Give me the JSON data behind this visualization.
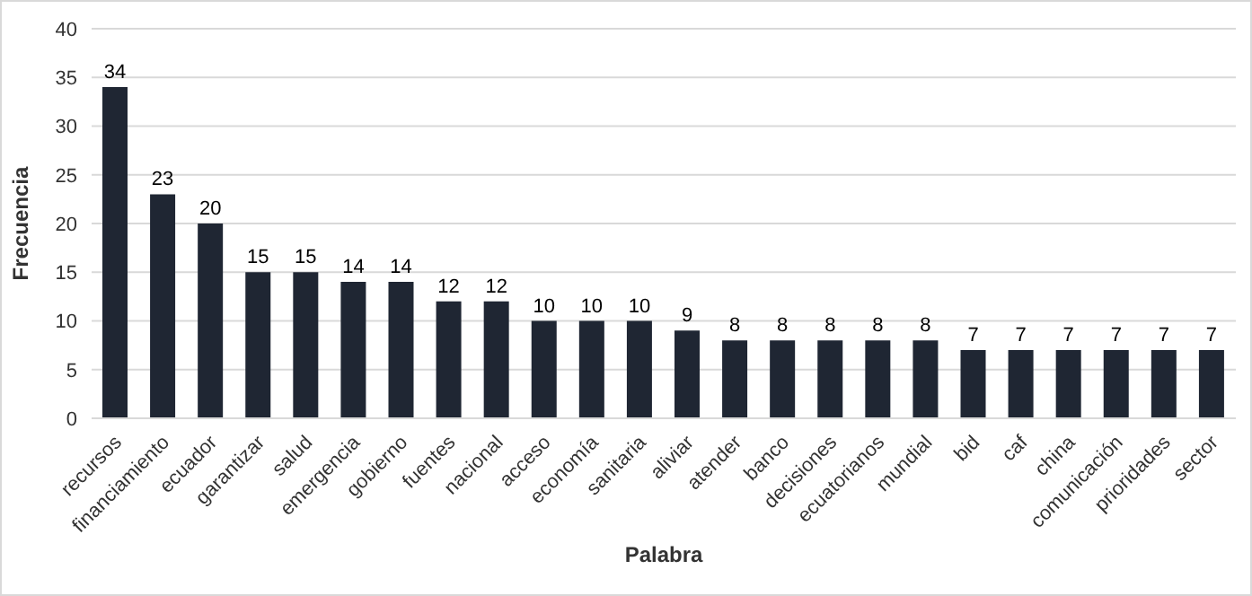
{
  "chart_data": {
    "type": "bar",
    "xlabel": "Palabra",
    "ylabel": "Frecuencia",
    "categories": [
      "recursos",
      "financiamiento",
      "ecuador",
      "garantizar",
      "salud",
      "emergencia",
      "gobierno",
      "fuentes",
      "nacional",
      "acceso",
      "economía",
      "sanitaria",
      "aliviar",
      "atender",
      "banco",
      "decisiones",
      "ecuatorianos",
      "mundial",
      "bid",
      "caf",
      "china",
      "comunicación",
      "prioridades",
      "sector"
    ],
    "values": [
      34,
      23,
      20,
      15,
      15,
      14,
      14,
      12,
      12,
      10,
      10,
      10,
      9,
      8,
      8,
      8,
      8,
      8,
      7,
      7,
      7,
      7,
      7,
      7
    ],
    "color": "#1f2633",
    "ylim": [
      0,
      40
    ],
    "yticks": [
      0,
      5,
      10,
      15,
      20,
      25,
      30,
      35,
      40
    ],
    "grid": "y",
    "data_labels": true
  }
}
